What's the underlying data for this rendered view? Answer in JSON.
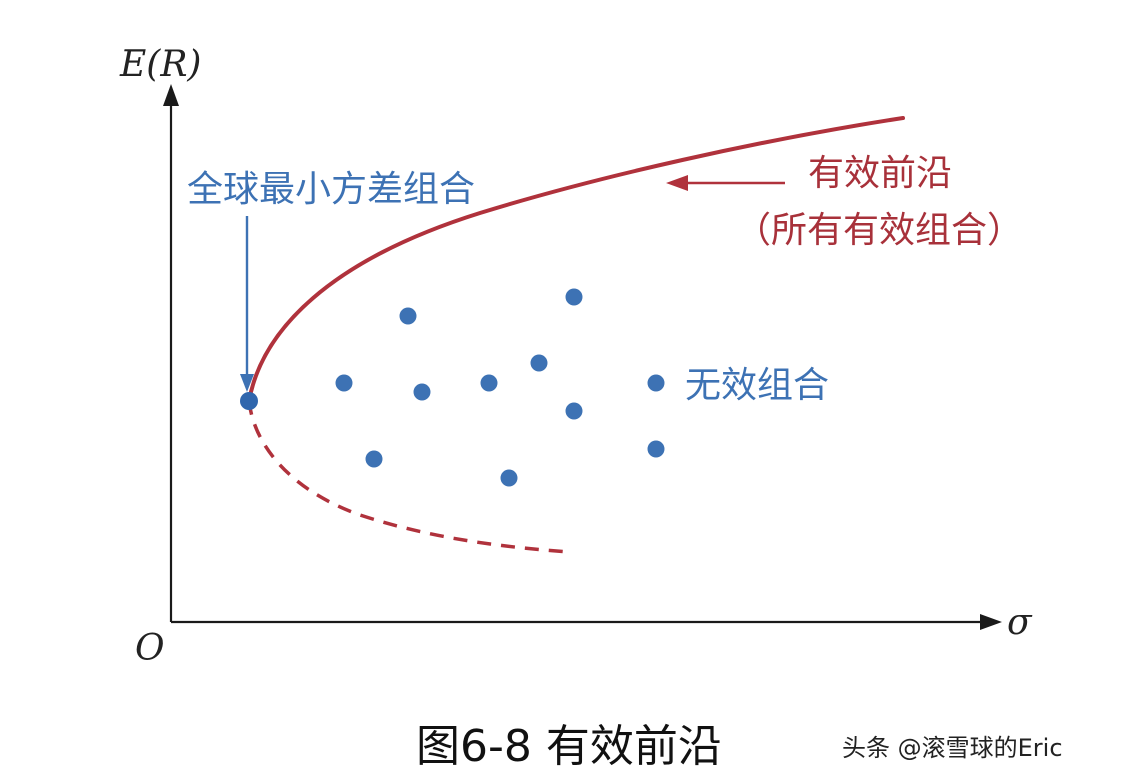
{
  "axes": {
    "y_label": "E(R)",
    "x_label": "σ",
    "origin_label": "O"
  },
  "labels": {
    "gmv": "全球最小方差组合",
    "frontier_line1": "有效前沿",
    "frontier_line2": "（所有有效组合）",
    "inefficient": "无效组合"
  },
  "caption": "图6-8 有效前沿",
  "watermark": "头条 @滚雪球的Eric",
  "colors": {
    "frontier": "#b0323c",
    "portfolio_dots": "#3d72b4",
    "axes": "#1a1a1a"
  },
  "icons": {
    "x_axis_arrow": "arrowhead-right-icon",
    "y_axis_arrow": "arrowhead-up-icon",
    "gmv_pointer": "arrow-down-icon",
    "frontier_pointer": "arrow-left-icon"
  }
}
